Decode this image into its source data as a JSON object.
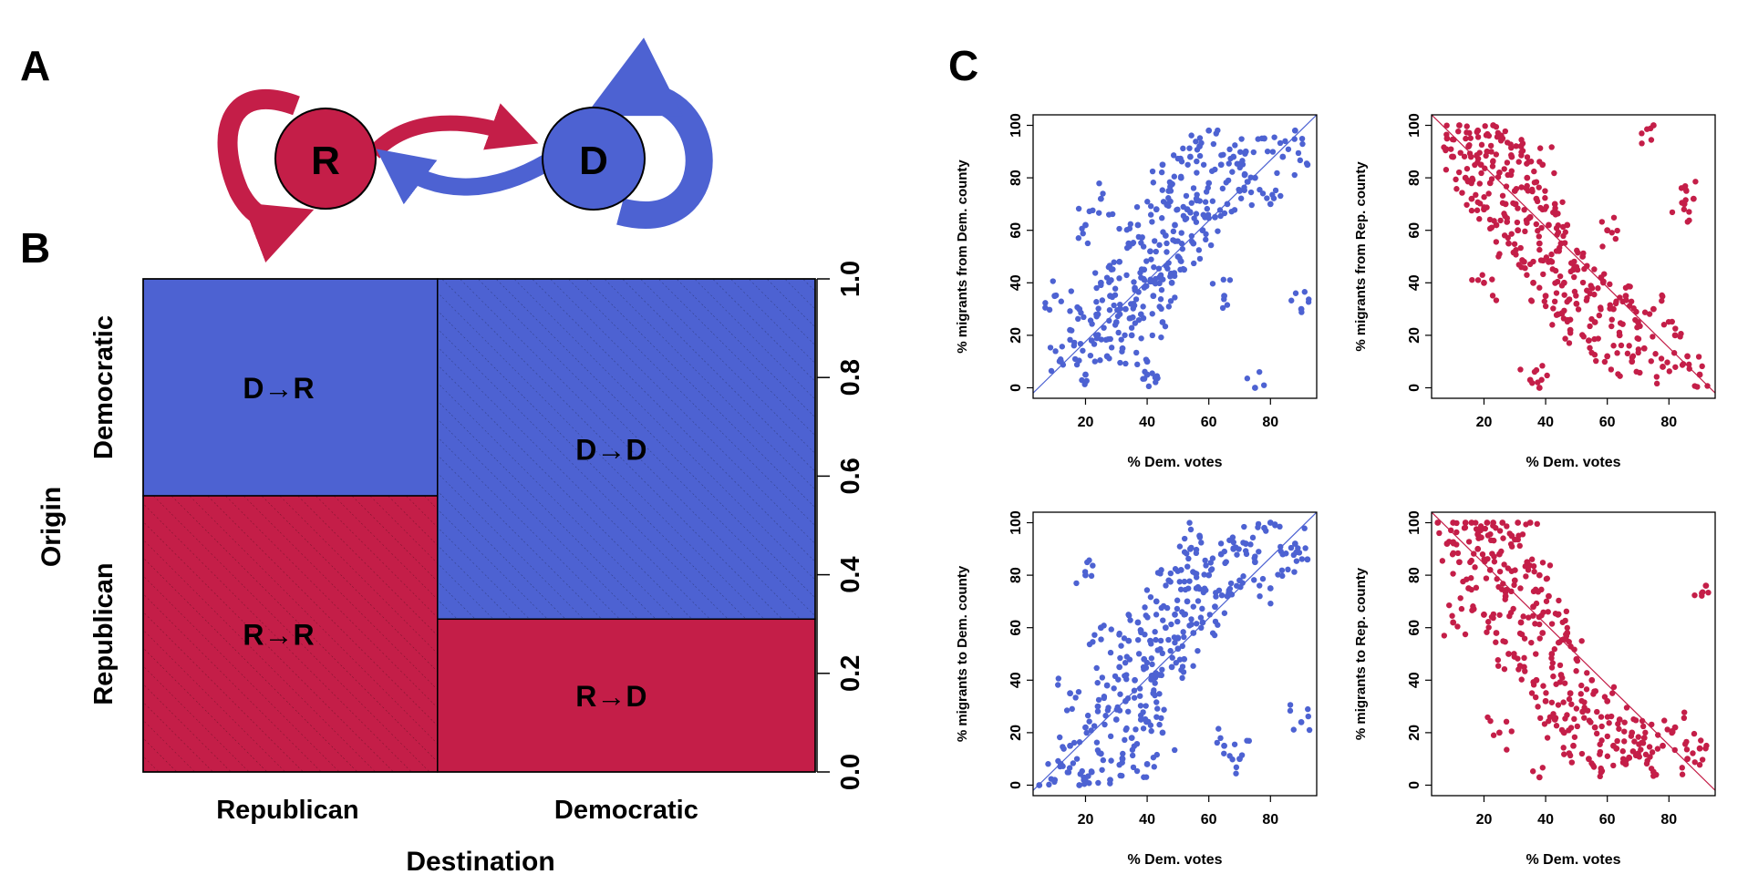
{
  "colors": {
    "republican": "#c41e48",
    "democratic": "#4d62d2",
    "axis": "#000000"
  },
  "panels": {
    "a": {
      "letter": "A",
      "node_r": "R",
      "node_d": "D"
    },
    "b": {
      "letter": "B",
      "xlabel": "Destination",
      "ylabel": "Origin"
    },
    "c": {
      "letter": "C"
    }
  },
  "chart_data": [
    {
      "type": "mosaic",
      "xlabel": "Destination",
      "ylabel": "Origin",
      "x_categories": [
        "Republican",
        "Democratic"
      ],
      "y_categories": [
        "Republican",
        "Democratic"
      ],
      "yticks": [
        "0.0",
        "0.2",
        "0.4",
        "0.6",
        "0.8",
        "1.0"
      ],
      "ylim": [
        0,
        1
      ],
      "column_widths": [
        0.438,
        0.562
      ],
      "cells": [
        {
          "label": "R→R",
          "destination": "Republican",
          "origin": "Republican",
          "share": 0.56,
          "hatched": true
        },
        {
          "label": "D→R",
          "destination": "Republican",
          "origin": "Democratic",
          "share": 0.44,
          "hatched": false
        },
        {
          "label": "R→D",
          "destination": "Democratic",
          "origin": "Republican",
          "share": 0.31,
          "hatched": false
        },
        {
          "label": "D→D",
          "destination": "Democratic",
          "origin": "Democratic",
          "share": 0.69,
          "hatched": true
        }
      ]
    },
    {
      "type": "scatter",
      "xlabel": "% Dem. votes",
      "ylabel": "% migrants from Dem. county",
      "xlim": [
        3,
        95
      ],
      "ylim": [
        -4,
        104
      ],
      "xticks": [
        "20",
        "40",
        "60",
        "80"
      ],
      "yticks": [
        "0",
        "20",
        "40",
        "60",
        "80",
        "100"
      ],
      "color": "democratic",
      "trend": "positive",
      "reference_line": {
        "x": [
          3,
          95
        ],
        "y": [
          -2,
          104
        ]
      },
      "points": [
        [
          12,
          10
        ],
        [
          15,
          22
        ],
        [
          18,
          30
        ],
        [
          20,
          5
        ],
        [
          22,
          18
        ],
        [
          24,
          28
        ],
        [
          25,
          40
        ],
        [
          27,
          12
        ],
        [
          28,
          35
        ],
        [
          30,
          25
        ],
        [
          31,
          48
        ],
        [
          32,
          15
        ],
        [
          33,
          30
        ],
        [
          34,
          55
        ],
        [
          35,
          20
        ],
        [
          36,
          38
        ],
        [
          37,
          62
        ],
        [
          38,
          28
        ],
        [
          39,
          45
        ],
        [
          40,
          10
        ],
        [
          41,
          52
        ],
        [
          42,
          35
        ],
        [
          43,
          68
        ],
        [
          44,
          42
        ],
        [
          45,
          25
        ],
        [
          46,
          58
        ],
        [
          47,
          75
        ],
        [
          48,
          40
        ],
        [
          49,
          62
        ],
        [
          50,
          50
        ],
        [
          51,
          80
        ],
        [
          52,
          45
        ],
        [
          53,
          68
        ],
        [
          54,
          88
        ],
        [
          55,
          55
        ],
        [
          56,
          72
        ],
        [
          57,
          92
        ],
        [
          58,
          60
        ],
        [
          60,
          78
        ],
        [
          62,
          65
        ],
        [
          64,
          85
        ],
        [
          66,
          70
        ],
        [
          68,
          88
        ],
        [
          70,
          75
        ],
        [
          72,
          90
        ],
        [
          75,
          80
        ],
        [
          78,
          95
        ],
        [
          80,
          70
        ],
        [
          84,
          88
        ],
        [
          88,
          98
        ],
        [
          92,
          85
        ],
        [
          10,
          35
        ],
        [
          20,
          62
        ],
        [
          25,
          72
        ],
        [
          90,
          30
        ],
        [
          75,
          0
        ],
        [
          60,
          98
        ],
        [
          40,
          5
        ],
        [
          65,
          35
        ],
        [
          45,
          85
        ]
      ]
    },
    {
      "type": "scatter",
      "xlabel": "% Dem. votes",
      "ylabel": "% migrants from Rep. county",
      "xlim": [
        3,
        95
      ],
      "ylim": [
        -4,
        104
      ],
      "xticks": [
        "20",
        "40",
        "60",
        "80"
      ],
      "yticks": [
        "0",
        "20",
        "40",
        "60",
        "80",
        "100"
      ],
      "color": "republican",
      "trend": "negative",
      "reference_line": {
        "x": [
          3,
          95
        ],
        "y": [
          104,
          -2
        ]
      },
      "points": [
        [
          8,
          95
        ],
        [
          10,
          88
        ],
        [
          12,
          100
        ],
        [
          14,
          80
        ],
        [
          15,
          92
        ],
        [
          16,
          72
        ],
        [
          18,
          98
        ],
        [
          19,
          85
        ],
        [
          20,
          68
        ],
        [
          21,
          90
        ],
        [
          22,
          78
        ],
        [
          23,
          100
        ],
        [
          24,
          62
        ],
        [
          25,
          82
        ],
        [
          26,
          95
        ],
        [
          27,
          70
        ],
        [
          28,
          55
        ],
        [
          29,
          88
        ],
        [
          30,
          75
        ],
        [
          31,
          60
        ],
        [
          32,
          92
        ],
        [
          33,
          48
        ],
        [
          34,
          80
        ],
        [
          35,
          65
        ],
        [
          36,
          40
        ],
        [
          37,
          72
        ],
        [
          38,
          55
        ],
        [
          39,
          85
        ],
        [
          40,
          35
        ],
        [
          41,
          62
        ],
        [
          42,
          48
        ],
        [
          43,
          70
        ],
        [
          44,
          28
        ],
        [
          45,
          55
        ],
        [
          46,
          40
        ],
        [
          47,
          62
        ],
        [
          48,
          22
        ],
        [
          49,
          45
        ],
        [
          50,
          32
        ],
        [
          52,
          50
        ],
        [
          54,
          18
        ],
        [
          55,
          38
        ],
        [
          56,
          25
        ],
        [
          58,
          42
        ],
        [
          60,
          12
        ],
        [
          62,
          30
        ],
        [
          64,
          20
        ],
        [
          66,
          35
        ],
        [
          68,
          10
        ],
        [
          70,
          25
        ],
        [
          72,
          15
        ],
        [
          75,
          30
        ],
        [
          78,
          8
        ],
        [
          82,
          20
        ],
        [
          86,
          12
        ],
        [
          90,
          5
        ],
        [
          38,
          0
        ],
        [
          35,
          3
        ],
        [
          75,
          100
        ],
        [
          85,
          70
        ],
        [
          88,
          72
        ],
        [
          60,
          60
        ],
        [
          20,
          40
        ]
      ]
    },
    {
      "type": "scatter",
      "xlabel": "% Dem. votes",
      "ylabel": "% migrants to Dem. county",
      "xlim": [
        3,
        95
      ],
      "ylim": [
        -4,
        104
      ],
      "xticks": [
        "20",
        "40",
        "60",
        "80"
      ],
      "yticks": [
        "0",
        "20",
        "40",
        "60",
        "80",
        "100"
      ],
      "color": "democratic",
      "trend": "positive",
      "reference_line": {
        "x": [
          3,
          95
        ],
        "y": [
          -2,
          104
        ]
      },
      "points": [
        [
          5,
          0
        ],
        [
          10,
          2
        ],
        [
          12,
          8
        ],
        [
          15,
          15
        ],
        [
          18,
          0
        ],
        [
          20,
          22
        ],
        [
          22,
          5
        ],
        [
          24,
          30
        ],
        [
          25,
          12
        ],
        [
          27,
          38
        ],
        [
          28,
          2
        ],
        [
          30,
          25
        ],
        [
          31,
          45
        ],
        [
          32,
          10
        ],
        [
          33,
          32
        ],
        [
          34,
          55
        ],
        [
          35,
          18
        ],
        [
          36,
          40
        ],
        [
          37,
          62
        ],
        [
          38,
          25
        ],
        [
          39,
          48
        ],
        [
          40,
          8
        ],
        [
          41,
          55
        ],
        [
          42,
          35
        ],
        [
          43,
          70
        ],
        [
          44,
          42
        ],
        [
          45,
          20
        ],
        [
          46,
          60
        ],
        [
          47,
          78
        ],
        [
          48,
          45
        ],
        [
          49,
          65
        ],
        [
          50,
          52
        ],
        [
          51,
          82
        ],
        [
          52,
          48
        ],
        [
          53,
          70
        ],
        [
          54,
          90
        ],
        [
          55,
          58
        ],
        [
          56,
          75
        ],
        [
          57,
          95
        ],
        [
          58,
          62
        ],
        [
          60,
          80
        ],
        [
          62,
          68
        ],
        [
          64,
          88
        ],
        [
          66,
          72
        ],
        [
          68,
          90
        ],
        [
          70,
          78
        ],
        [
          72,
          92
        ],
        [
          75,
          85
        ],
        [
          78,
          98
        ],
        [
          80,
          75
        ],
        [
          84,
          88
        ],
        [
          88,
          92
        ],
        [
          92,
          86
        ],
        [
          90,
          24
        ],
        [
          20,
          80
        ],
        [
          25,
          60
        ],
        [
          65,
          15
        ],
        [
          70,
          10
        ],
        [
          15,
          35
        ],
        [
          80,
          100
        ]
      ]
    },
    {
      "type": "scatter",
      "xlabel": "% Dem. votes",
      "ylabel": "% migrants to Rep. county",
      "xlim": [
        3,
        95
      ],
      "ylim": [
        -4,
        104
      ],
      "xticks": [
        "20",
        "40",
        "60",
        "80"
      ],
      "yticks": [
        "0",
        "20",
        "40",
        "60",
        "80",
        "100"
      ],
      "color": "republican",
      "trend": "negative",
      "reference_line": {
        "x": [
          3,
          95
        ],
        "y": [
          104,
          -2
        ]
      },
      "points": [
        [
          5,
          100
        ],
        [
          8,
          92
        ],
        [
          10,
          100
        ],
        [
          12,
          85
        ],
        [
          14,
          100
        ],
        [
          15,
          75
        ],
        [
          16,
          100
        ],
        [
          18,
          90
        ],
        [
          20,
          65
        ],
        [
          21,
          100
        ],
        [
          22,
          82
        ],
        [
          23,
          100
        ],
        [
          24,
          58
        ],
        [
          25,
          88
        ],
        [
          26,
          100
        ],
        [
          27,
          72
        ],
        [
          28,
          50
        ],
        [
          29,
          95
        ],
        [
          30,
          78
        ],
        [
          31,
          100
        ],
        [
          32,
          62
        ],
        [
          33,
          45
        ],
        [
          34,
          85
        ],
        [
          35,
          100
        ],
        [
          36,
          68
        ],
        [
          37,
          40
        ],
        [
          38,
          80
        ],
        [
          39,
          58
        ],
        [
          40,
          32
        ],
        [
          41,
          72
        ],
        [
          42,
          50
        ],
        [
          43,
          25
        ],
        [
          44,
          65
        ],
        [
          45,
          42
        ],
        [
          46,
          20
        ],
        [
          47,
          58
        ],
        [
          48,
          35
        ],
        [
          49,
          15
        ],
        [
          50,
          48
        ],
        [
          52,
          28
        ],
        [
          54,
          10
        ],
        [
          55,
          40
        ],
        [
          56,
          22
        ],
        [
          58,
          5
        ],
        [
          60,
          32
        ],
        [
          62,
          15
        ],
        [
          64,
          25
        ],
        [
          66,
          8
        ],
        [
          68,
          20
        ],
        [
          70,
          12
        ],
        [
          72,
          18
        ],
        [
          75,
          5
        ],
        [
          78,
          15
        ],
        [
          82,
          22
        ],
        [
          86,
          10
        ],
        [
          90,
          14
        ],
        [
          92,
          76
        ],
        [
          38,
          3
        ],
        [
          10,
          62
        ],
        [
          25,
          20
        ]
      ]
    }
  ]
}
